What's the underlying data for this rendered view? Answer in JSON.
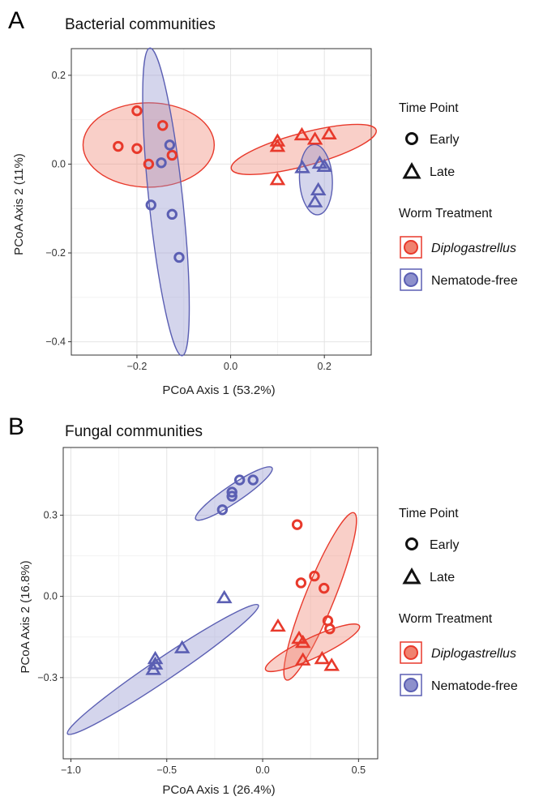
{
  "colors": {
    "diplogastrellus": "#e8392b",
    "diplogastrellus_fill": "#f0826f",
    "nematode_free": "#5b5fb3",
    "nematode_free_fill": "#8d90cc",
    "grid_major": "#e4e4e4",
    "grid_minor": "#f2f2f2"
  },
  "legend": {
    "time_title": "Time Point",
    "time_items": [
      {
        "label": "Early",
        "shape": "circle"
      },
      {
        "label": "Late",
        "shape": "triangle"
      }
    ],
    "treatment_title": "Worm  Treatment",
    "treatment_items": [
      {
        "label": "Diplogastrellus",
        "italic": true,
        "group": "diplogastrellus"
      },
      {
        "label": "Nematode-free",
        "italic": false,
        "group": "nematode_free"
      }
    ]
  },
  "chart_data": [
    {
      "panel": "A",
      "type": "scatter",
      "title": "Bacterial communities",
      "xlabel": "PCoA Axis 1 (53.2%)",
      "ylabel": "PCoA Axis 2 (11%)",
      "xlim": [
        -0.34,
        0.3
      ],
      "ylim": [
        -0.43,
        0.26
      ],
      "xticks": [
        -0.2,
        0.0,
        0.2
      ],
      "xtick_labels": [
        "−0.2",
        "0.0",
        "0.2"
      ],
      "yticks": [
        -0.4,
        -0.2,
        0.0,
        0.2
      ],
      "ytick_labels": [
        "−0.4",
        "−0.2",
        "0.0",
        "0.2"
      ],
      "grid": true,
      "legend_position": "right",
      "series": [
        {
          "group": "diplogastrellus",
          "time": "Early",
          "points": [
            [
              -0.24,
              0.04
            ],
            [
              -0.2,
              0.12
            ],
            [
              -0.2,
              0.035
            ],
            [
              -0.175,
              0.0
            ],
            [
              -0.145,
              0.087
            ],
            [
              -0.125,
              0.02
            ]
          ]
        },
        {
          "group": "nematode_free",
          "time": "Early",
          "points": [
            [
              -0.17,
              -0.092
            ],
            [
              -0.148,
              0.003
            ],
            [
              -0.13,
              0.043
            ],
            [
              -0.125,
              -0.113
            ],
            [
              -0.11,
              -0.21
            ]
          ]
        },
        {
          "group": "diplogastrellus",
          "time": "Late",
          "points": [
            [
              0.1,
              0.052
            ],
            [
              0.1,
              0.04
            ],
            [
              0.1,
              -0.035
            ],
            [
              0.152,
              0.066
            ],
            [
              0.18,
              0.056
            ],
            [
              0.21,
              0.068
            ]
          ]
        },
        {
          "group": "nematode_free",
          "time": "Late",
          "points": [
            [
              0.153,
              -0.008
            ],
            [
              0.18,
              -0.085
            ],
            [
              0.187,
              -0.058
            ],
            [
              0.19,
              0.002
            ],
            [
              0.2,
              -0.005
            ]
          ]
        }
      ],
      "ellipses": [
        {
          "group": "diplogastrellus",
          "cx": -0.175,
          "cy": 0.043,
          "rx": 0.14,
          "ry": 0.09,
          "angle": 0
        },
        {
          "group": "nematode_free",
          "cx": -0.138,
          "cy": -0.085,
          "rx": 0.036,
          "ry": 0.33,
          "angle": 6
        },
        {
          "group": "diplogastrellus",
          "cx": 0.156,
          "cy": 0.033,
          "rx": 0.16,
          "ry": 0.035,
          "angle": 15
        },
        {
          "group": "nematode_free",
          "cx": 0.182,
          "cy": -0.035,
          "rx": 0.035,
          "ry": 0.075,
          "angle": 3
        }
      ]
    },
    {
      "panel": "B",
      "type": "scatter",
      "title": "Fungal communities",
      "xlabel": "PCoA Axis 1 (26.4%)",
      "ylabel": "PCoA Axis 2 (16.8%)",
      "xlim": [
        -1.04,
        0.6
      ],
      "ylim": [
        -0.6,
        0.55
      ],
      "xticks": [
        -1.0,
        -0.5,
        0.0,
        0.5
      ],
      "xtick_labels": [
        "−1.0",
        "−0.5",
        "0.0",
        "0.5"
      ],
      "yticks": [
        -0.3,
        0.0,
        0.3
      ],
      "ytick_labels": [
        "−0.3",
        "0.0",
        "0.3"
      ],
      "grid": true,
      "legend_position": "right",
      "series": [
        {
          "group": "nematode_free",
          "time": "Early",
          "points": [
            [
              -0.21,
              0.32
            ],
            [
              -0.16,
              0.37
            ],
            [
              -0.16,
              0.385
            ],
            [
              -0.12,
              0.43
            ],
            [
              -0.05,
              0.43
            ]
          ]
        },
        {
          "group": "diplogastrellus",
          "time": "Early",
          "points": [
            [
              0.18,
              0.265
            ],
            [
              0.2,
              0.05
            ],
            [
              0.27,
              0.075
            ],
            [
              0.32,
              0.03
            ],
            [
              0.34,
              -0.09
            ],
            [
              0.35,
              -0.12
            ]
          ]
        },
        {
          "group": "nematode_free",
          "time": "Late",
          "points": [
            [
              -0.57,
              -0.27
            ],
            [
              -0.56,
              -0.23
            ],
            [
              -0.56,
              -0.25
            ],
            [
              -0.42,
              -0.19
            ],
            [
              -0.2,
              -0.005
            ]
          ]
        },
        {
          "group": "diplogastrellus",
          "time": "Late",
          "points": [
            [
              0.08,
              -0.11
            ],
            [
              0.19,
              -0.155
            ],
            [
              0.21,
              -0.17
            ],
            [
              0.21,
              -0.235
            ],
            [
              0.31,
              -0.23
            ],
            [
              0.36,
              -0.255
            ]
          ]
        }
      ],
      "ellipses": [
        {
          "group": "nematode_free",
          "cx": -0.15,
          "cy": 0.38,
          "rx": 0.24,
          "ry": 0.045,
          "angle": 34
        },
        {
          "group": "diplogastrellus",
          "cx": 0.3,
          "cy": 0.0,
          "rx": 0.47,
          "ry": 0.075,
          "angle": 68
        },
        {
          "group": "diplogastrellus",
          "cx": 0.26,
          "cy": -0.19,
          "rx": 0.27,
          "ry": 0.053,
          "angle": 25
        },
        {
          "group": "nematode_free",
          "cx": -0.52,
          "cy": -0.27,
          "rx": 0.6,
          "ry": 0.058,
          "angle": 34
        }
      ]
    }
  ]
}
